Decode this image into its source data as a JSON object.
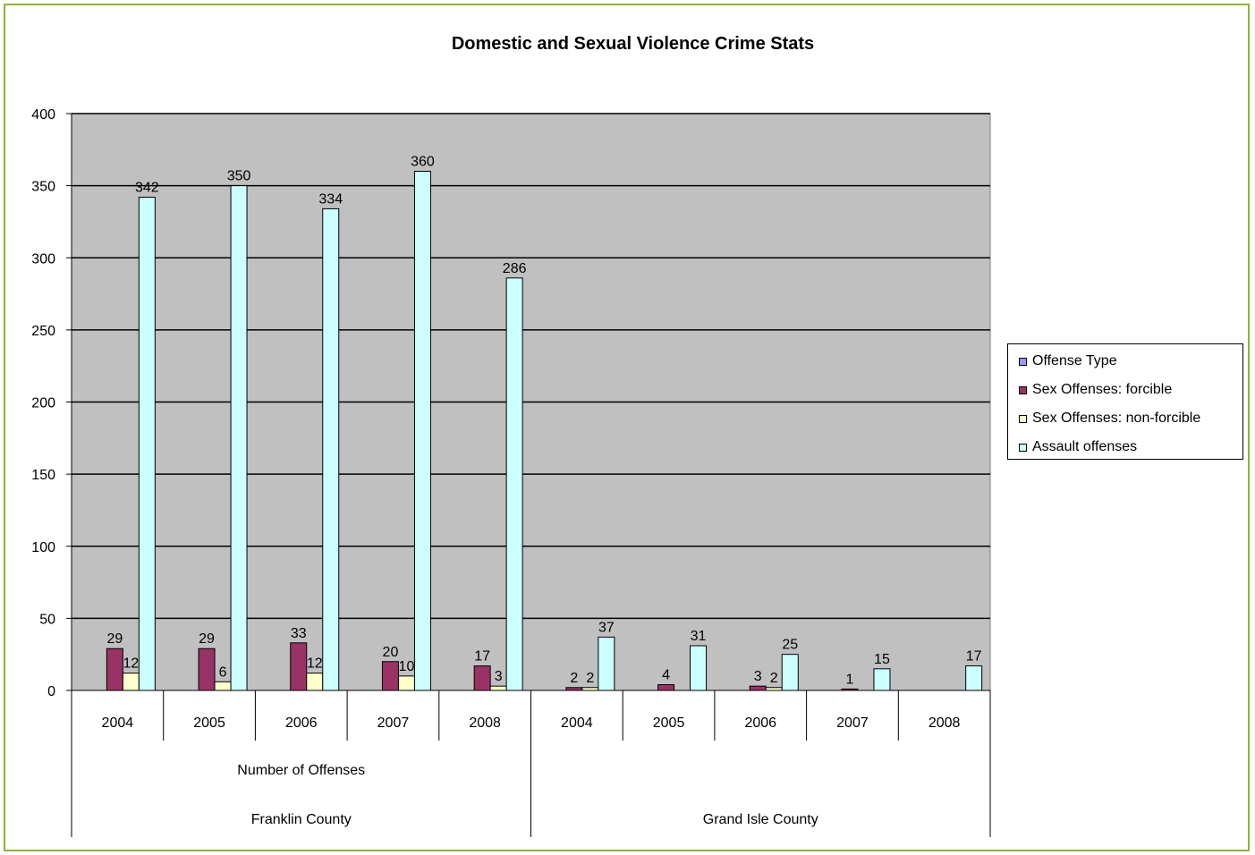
{
  "chart_data": {
    "type": "bar",
    "title": "Domestic and Sexual Violence Crime Stats",
    "xlabel": "",
    "ylabel": "",
    "ylim": [
      0,
      400
    ],
    "yticks": [
      "0",
      "50",
      "100",
      "150",
      "200",
      "250",
      "300",
      "350",
      "400"
    ],
    "grid": true,
    "legend_position": "right",
    "category_groups": [
      {
        "label": "Franklin County",
        "sublabel": "Number of Offenses",
        "years": [
          "2004",
          "2005",
          "2006",
          "2007",
          "2008"
        ]
      },
      {
        "label": "Grand Isle County",
        "sublabel": "",
        "years": [
          "2004",
          "2005",
          "2006",
          "2007",
          "2008"
        ]
      }
    ],
    "categories": [
      "2004",
      "2005",
      "2006",
      "2007",
      "2008",
      "2004",
      "2005",
      "2006",
      "2007",
      "2008"
    ],
    "series": [
      {
        "name": "Offense Type",
        "color": "#9999ff",
        "values": [
          0,
          0,
          0,
          0,
          0,
          0,
          0,
          0,
          0,
          0
        ],
        "labels": [
          "",
          "",
          "",
          "",
          "",
          "",
          "",
          "",
          "",
          ""
        ]
      },
      {
        "name": "Sex Offenses: forcible",
        "color": "#993366",
        "values": [
          29,
          29,
          33,
          20,
          17,
          2,
          4,
          3,
          1,
          0
        ],
        "labels": [
          "29",
          "29",
          "33",
          "20",
          "17",
          "2",
          "4",
          "3",
          "1",
          ""
        ]
      },
      {
        "name": "Sex Offenses: non-forcible",
        "color": "#ffffcc",
        "values": [
          12,
          6,
          12,
          10,
          3,
          2,
          0,
          2,
          0,
          0
        ],
        "labels": [
          "12",
          "6",
          "12",
          "10",
          "3",
          "2",
          "",
          "2",
          "",
          ""
        ]
      },
      {
        "name": "Assault offenses",
        "color": "#ccffff",
        "values": [
          342,
          350,
          334,
          360,
          286,
          37,
          31,
          25,
          15,
          17
        ],
        "labels": [
          "342",
          "350",
          "334",
          "360",
          "286",
          "37",
          "31",
          "25",
          "15",
          "17"
        ]
      }
    ],
    "plot_background": "#c0c0c0",
    "border_color": "#8db43c"
  }
}
